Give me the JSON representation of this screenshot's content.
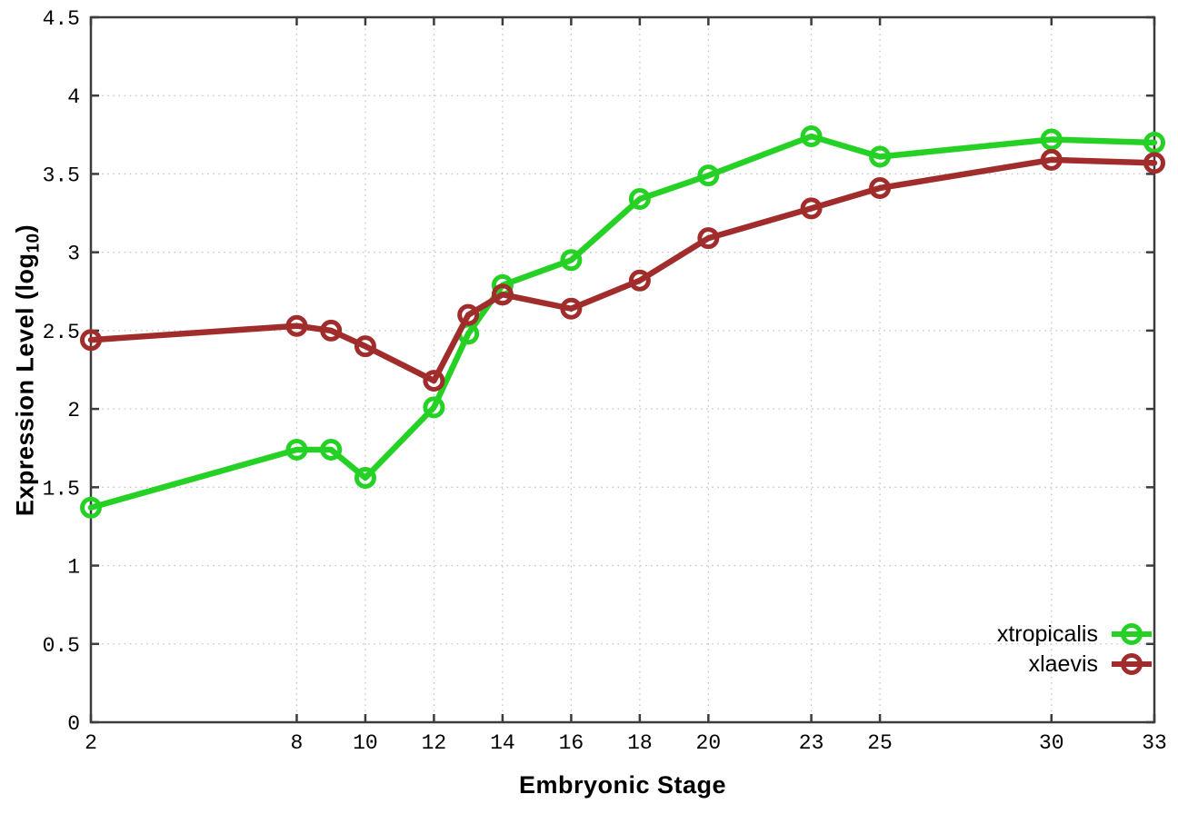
{
  "figure": {
    "background": "#ffffff",
    "border_color": "#3c3c3c",
    "grid_color": "#c6c6c6",
    "tick_text_color": "#000000"
  },
  "chart_data": {
    "type": "line",
    "title": "",
    "xlabel": "Embryonic Stage",
    "ylabel": "Expression Level (log10)",
    "ylabel_main": "Expression Level (log",
    "ylabel_sub": "10",
    "ylabel_end": ")",
    "xlim": [
      2,
      33
    ],
    "ylim": [
      0,
      4.5
    ],
    "x_ticks": [
      2,
      8,
      10,
      12,
      14,
      16,
      18,
      20,
      23,
      25,
      30,
      33
    ],
    "y_ticks": [
      0,
      0.5,
      1,
      1.5,
      2,
      2.5,
      3,
      3.5,
      4,
      4.5
    ],
    "y_tick_labels": [
      "0",
      "0.5",
      "1",
      "1.5",
      "2",
      "2.5",
      "3",
      "3.5",
      "4",
      "4.5"
    ],
    "grid": true,
    "legend_position": "bottom-right-inside",
    "x": [
      2,
      8,
      9,
      10,
      12,
      13,
      14,
      16,
      18,
      20,
      23,
      25,
      30,
      33
    ],
    "series": [
      {
        "name": "xtropicalis",
        "color": "#25d125",
        "values": [
          1.37,
          1.74,
          1.74,
          1.56,
          2.01,
          2.48,
          2.79,
          2.95,
          3.34,
          3.49,
          3.74,
          3.61,
          3.72,
          3.7
        ]
      },
      {
        "name": "xlaevis",
        "color": "#a12c2c",
        "values": [
          2.44,
          2.53,
          2.5,
          2.4,
          2.18,
          2.6,
          2.73,
          2.64,
          2.82,
          3.09,
          3.28,
          3.41,
          3.59,
          3.57
        ]
      }
    ]
  }
}
